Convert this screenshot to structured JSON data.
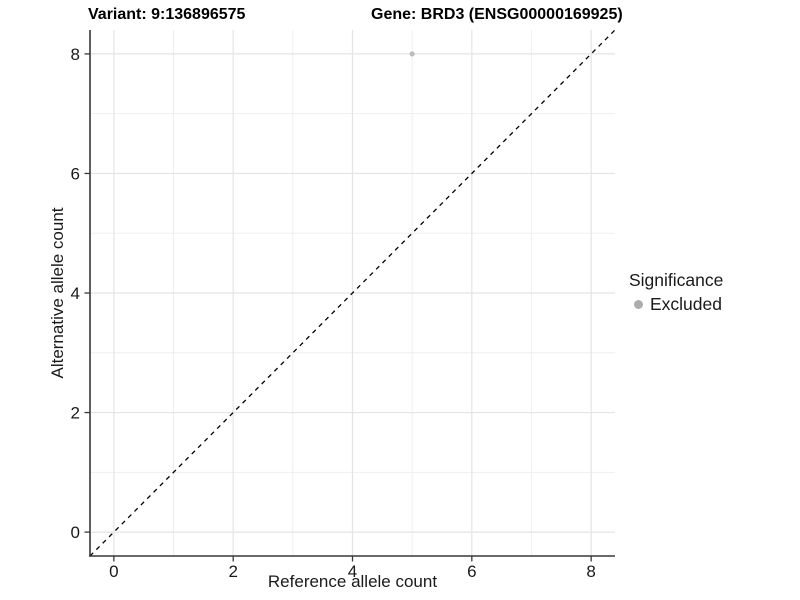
{
  "figure": {
    "title_left": "Variant: 9:136896575",
    "title_right": "Gene: BRD3 (ENSG00000169925)"
  },
  "legend": {
    "title": "Significance",
    "items": [
      {
        "label": "Excluded",
        "color": "#adadad"
      }
    ]
  },
  "chart_data": {
    "type": "scatter",
    "title": "Variant: 9:136896575 | Gene: BRD3 (ENSG00000169925)",
    "xlabel": "Reference allele count",
    "ylabel": "Alternative allele count",
    "xlim": [
      -0.4,
      8.4
    ],
    "ylim": [
      -0.4,
      8.4
    ],
    "x_ticks": [
      0,
      2,
      4,
      6,
      8
    ],
    "y_ticks": [
      0,
      2,
      4,
      6,
      8
    ],
    "x_minor": [
      1,
      3,
      5,
      7
    ],
    "y_minor": [
      1,
      3,
      5,
      7
    ],
    "grid": "major and minor gridlines, white panel background",
    "legend_position": "right",
    "series": [
      {
        "name": "Excluded",
        "color": "#bdbdbd",
        "points": [
          {
            "x": 5,
            "y": 8
          }
        ]
      }
    ],
    "identity_line": {
      "equation": "y = x",
      "style": "dashed",
      "color": "#000000",
      "from": [
        -0.4,
        -0.4
      ],
      "to": [
        8.4,
        8.4
      ]
    }
  },
  "style": {
    "grid_major_color": "#e4e4e4",
    "grid_minor_color": "#efefef",
    "axis_color": "#383838",
    "tick_label_color": "#1a1a1a"
  }
}
